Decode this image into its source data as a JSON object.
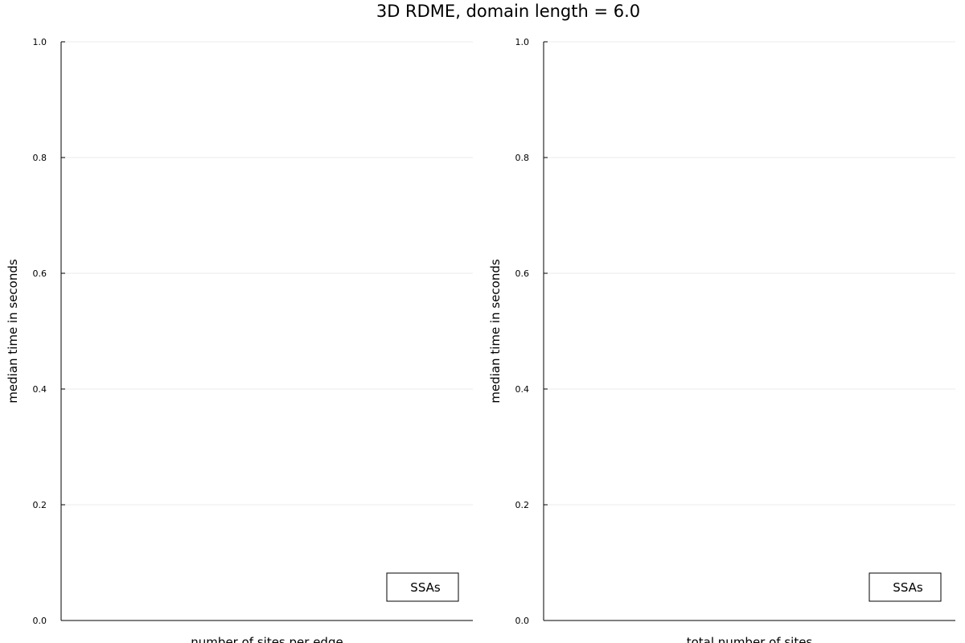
{
  "figure": {
    "title": "3D RDME, domain length = 6.0"
  },
  "chart_data": [
    {
      "type": "line",
      "xlabel": "number of sites per edge",
      "ylabel": "median time in seconds",
      "ylim": [
        0.0,
        1.0
      ],
      "yticks": [
        "0.0",
        "0.2",
        "0.4",
        "0.6",
        "0.8",
        "1.0"
      ],
      "grid": true,
      "legend_position": "bottom-right",
      "series": [
        {
          "name": "SSAs",
          "x": [],
          "y": []
        }
      ]
    },
    {
      "type": "line",
      "xlabel": "total number of sites",
      "ylabel": "median time in seconds",
      "ylim": [
        0.0,
        1.0
      ],
      "yticks": [
        "0.0",
        "0.2",
        "0.4",
        "0.6",
        "0.8",
        "1.0"
      ],
      "grid": true,
      "legend_position": "bottom-right",
      "series": [
        {
          "name": "SSAs",
          "x": [],
          "y": []
        }
      ]
    }
  ]
}
